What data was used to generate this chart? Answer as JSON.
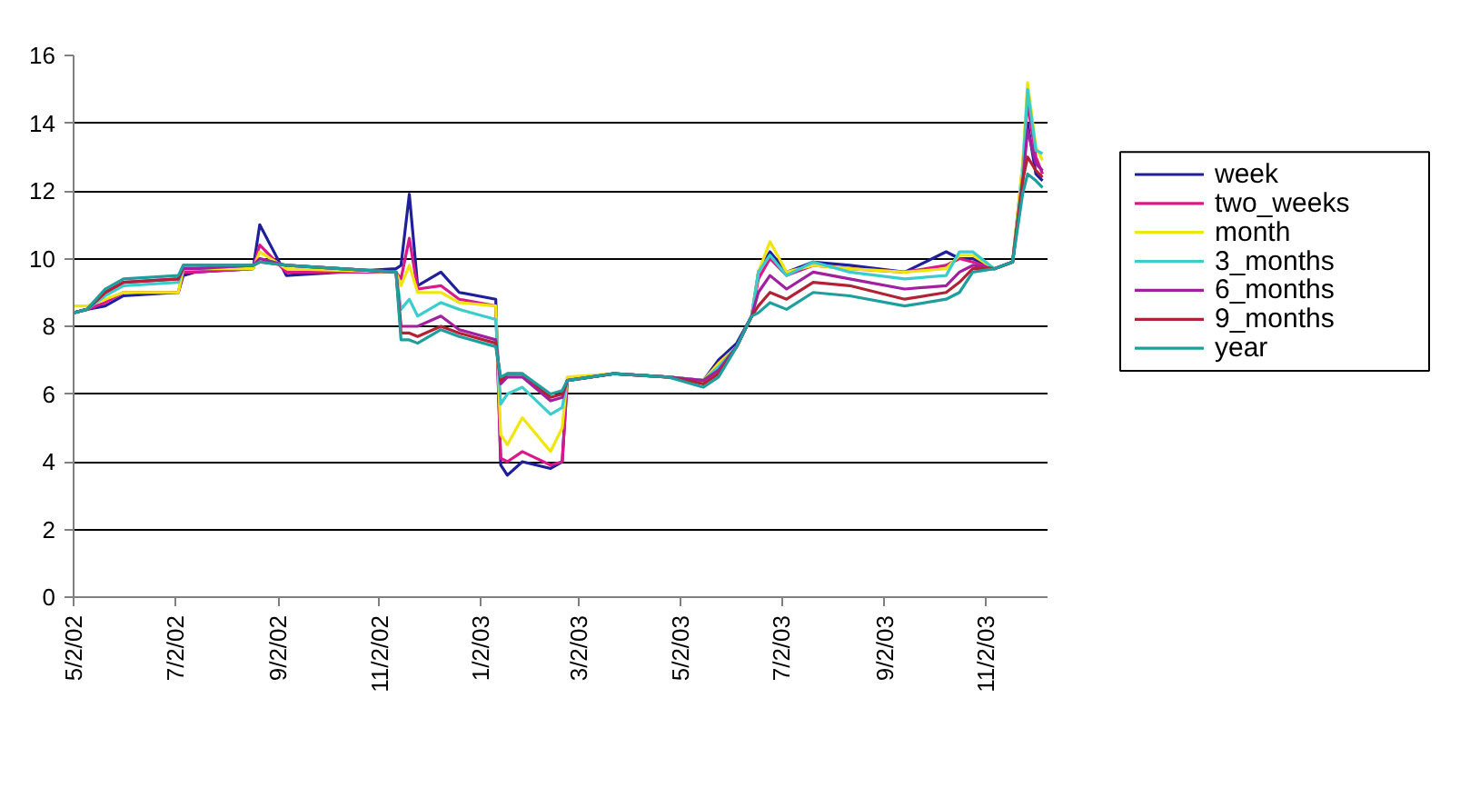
{
  "chart_data": {
    "type": "line",
    "x": [
      "2002-05-02",
      "2002-05-10",
      "2002-05-21",
      "2002-06-01",
      "2002-07-04",
      "2002-07-07",
      "2002-07-14",
      "2002-08-18",
      "2002-08-22",
      "2002-09-07",
      "2002-11-12",
      "2002-11-15",
      "2002-11-20",
      "2002-11-25",
      "2002-12-09",
      "2002-12-20",
      "2003-01-11",
      "2003-01-14",
      "2003-01-18",
      "2003-01-27",
      "2003-02-13",
      "2003-02-20",
      "2003-02-23",
      "2003-03-23",
      "2003-04-25",
      "2003-05-16",
      "2003-05-25",
      "2003-06-05",
      "2003-06-14",
      "2003-06-18",
      "2003-06-25",
      "2003-07-05",
      "2003-07-21",
      "2003-08-12",
      "2003-09-14",
      "2003-10-09",
      "2003-10-17",
      "2003-10-25",
      "2003-11-07",
      "2003-11-18",
      "2003-11-24",
      "2003-11-27",
      "2003-12-02",
      "2003-12-06"
    ],
    "series": [
      {
        "name": "week",
        "color": "#1f1f9c",
        "values": [
          8.4,
          8.5,
          8.6,
          8.9,
          9.0,
          9.5,
          9.6,
          9.7,
          11.0,
          9.5,
          9.7,
          9.8,
          11.9,
          9.2,
          9.6,
          9.0,
          8.8,
          3.9,
          3.6,
          4.0,
          3.8,
          4.0,
          6.4,
          6.6,
          6.5,
          6.4,
          7.0,
          7.5,
          8.3,
          9.6,
          10.2,
          9.6,
          9.9,
          9.8,
          9.6,
          10.2,
          10.0,
          10.0,
          9.7,
          9.9,
          12.6,
          14.0,
          12.5,
          12.3
        ]
      },
      {
        "name": "two_weeks",
        "color": "#d9188c",
        "values": [
          8.4,
          8.5,
          8.7,
          9.0,
          9.0,
          9.6,
          9.6,
          9.7,
          10.4,
          9.6,
          9.6,
          9.4,
          10.6,
          9.1,
          9.2,
          8.8,
          8.6,
          4.1,
          4.0,
          4.3,
          3.9,
          4.0,
          6.4,
          6.6,
          6.5,
          6.4,
          6.9,
          7.4,
          8.3,
          9.4,
          10.0,
          9.5,
          9.8,
          9.7,
          9.6,
          9.8,
          10.0,
          9.9,
          9.7,
          9.9,
          12.7,
          14.6,
          13.0,
          12.5
        ]
      },
      {
        "name": "month",
        "color": "#f0e60f",
        "values": [
          8.6,
          8.6,
          8.8,
          9.0,
          9.0,
          9.7,
          9.7,
          9.7,
          10.2,
          9.7,
          9.6,
          9.2,
          9.8,
          9.0,
          9.0,
          8.7,
          8.6,
          4.8,
          4.5,
          5.3,
          4.3,
          5.0,
          6.5,
          6.6,
          6.5,
          6.4,
          6.9,
          7.4,
          8.3,
          9.6,
          10.5,
          9.6,
          9.8,
          9.7,
          9.6,
          9.7,
          10.1,
          10.1,
          9.7,
          9.9,
          12.8,
          15.2,
          13.3,
          12.9
        ]
      },
      {
        "name": "3_months",
        "color": "#3ccccc",
        "values": [
          8.4,
          8.5,
          8.9,
          9.2,
          9.3,
          9.7,
          9.7,
          9.8,
          10.0,
          9.8,
          9.6,
          8.5,
          8.8,
          8.3,
          8.7,
          8.5,
          8.2,
          5.7,
          6.0,
          6.2,
          5.4,
          5.6,
          6.4,
          6.6,
          6.5,
          6.4,
          6.8,
          7.4,
          8.3,
          9.6,
          10.1,
          9.5,
          9.9,
          9.6,
          9.4,
          9.5,
          10.2,
          10.2,
          9.7,
          9.9,
          12.5,
          15.0,
          13.2,
          13.1
        ]
      },
      {
        "name": "6_months",
        "color": "#a020a0",
        "values": [
          8.4,
          8.5,
          9.0,
          9.3,
          9.4,
          9.7,
          9.7,
          9.8,
          10.0,
          9.8,
          9.6,
          8.0,
          8.0,
          8.0,
          8.3,
          7.9,
          7.6,
          6.3,
          6.5,
          6.5,
          5.8,
          5.9,
          6.4,
          6.6,
          6.5,
          6.4,
          6.7,
          7.4,
          8.3,
          9.0,
          9.5,
          9.1,
          9.6,
          9.4,
          9.1,
          9.2,
          9.6,
          9.8,
          9.7,
          9.9,
          12.2,
          13.8,
          12.8,
          12.6
        ]
      },
      {
        "name": "9_months",
        "color": "#b22234",
        "values": [
          8.4,
          8.5,
          9.0,
          9.3,
          9.4,
          9.8,
          9.8,
          9.8,
          9.9,
          9.8,
          9.6,
          7.8,
          7.8,
          7.7,
          8.0,
          7.8,
          7.5,
          6.4,
          6.6,
          6.6,
          5.9,
          6.0,
          6.4,
          6.6,
          6.5,
          6.3,
          6.6,
          7.4,
          8.3,
          8.6,
          9.0,
          8.8,
          9.3,
          9.2,
          8.8,
          9.0,
          9.3,
          9.7,
          9.7,
          9.9,
          12.3,
          13.0,
          12.6,
          12.4
        ]
      },
      {
        "name": "year",
        "color": "#1f9e9e",
        "values": [
          8.4,
          8.5,
          9.1,
          9.4,
          9.5,
          9.8,
          9.8,
          9.8,
          9.9,
          9.8,
          9.6,
          7.6,
          7.6,
          7.5,
          7.9,
          7.7,
          7.4,
          6.5,
          6.6,
          6.6,
          6.0,
          6.1,
          6.4,
          6.6,
          6.5,
          6.2,
          6.5,
          7.4,
          8.3,
          8.4,
          8.7,
          8.5,
          9.0,
          8.9,
          8.6,
          8.8,
          9.0,
          9.6,
          9.7,
          9.9,
          11.9,
          12.5,
          12.3,
          12.1
        ]
      }
    ],
    "xlim": [
      "2002-05-02",
      "2003-12-09"
    ],
    "xticks": [
      {
        "value": "2002-05-02",
        "label": "5/2/02"
      },
      {
        "value": "2002-07-02",
        "label": "7/2/02"
      },
      {
        "value": "2002-09-02",
        "label": "9/2/02"
      },
      {
        "value": "2002-11-02",
        "label": "11/2/02"
      },
      {
        "value": "2003-01-02",
        "label": "1/2/03"
      },
      {
        "value": "2003-03-02",
        "label": "3/2/03"
      },
      {
        "value": "2003-05-02",
        "label": "5/2/03"
      },
      {
        "value": "2003-07-02",
        "label": "7/2/03"
      },
      {
        "value": "2003-09-02",
        "label": "9/2/03"
      },
      {
        "value": "2003-11-02",
        "label": "11/2/03"
      }
    ],
    "ylim": [
      0,
      16
    ],
    "yticks": [
      0,
      2,
      4,
      6,
      8,
      10,
      12,
      14,
      16
    ],
    "grid": "y",
    "legend": "right",
    "marker": "none",
    "line_style": "solid"
  }
}
